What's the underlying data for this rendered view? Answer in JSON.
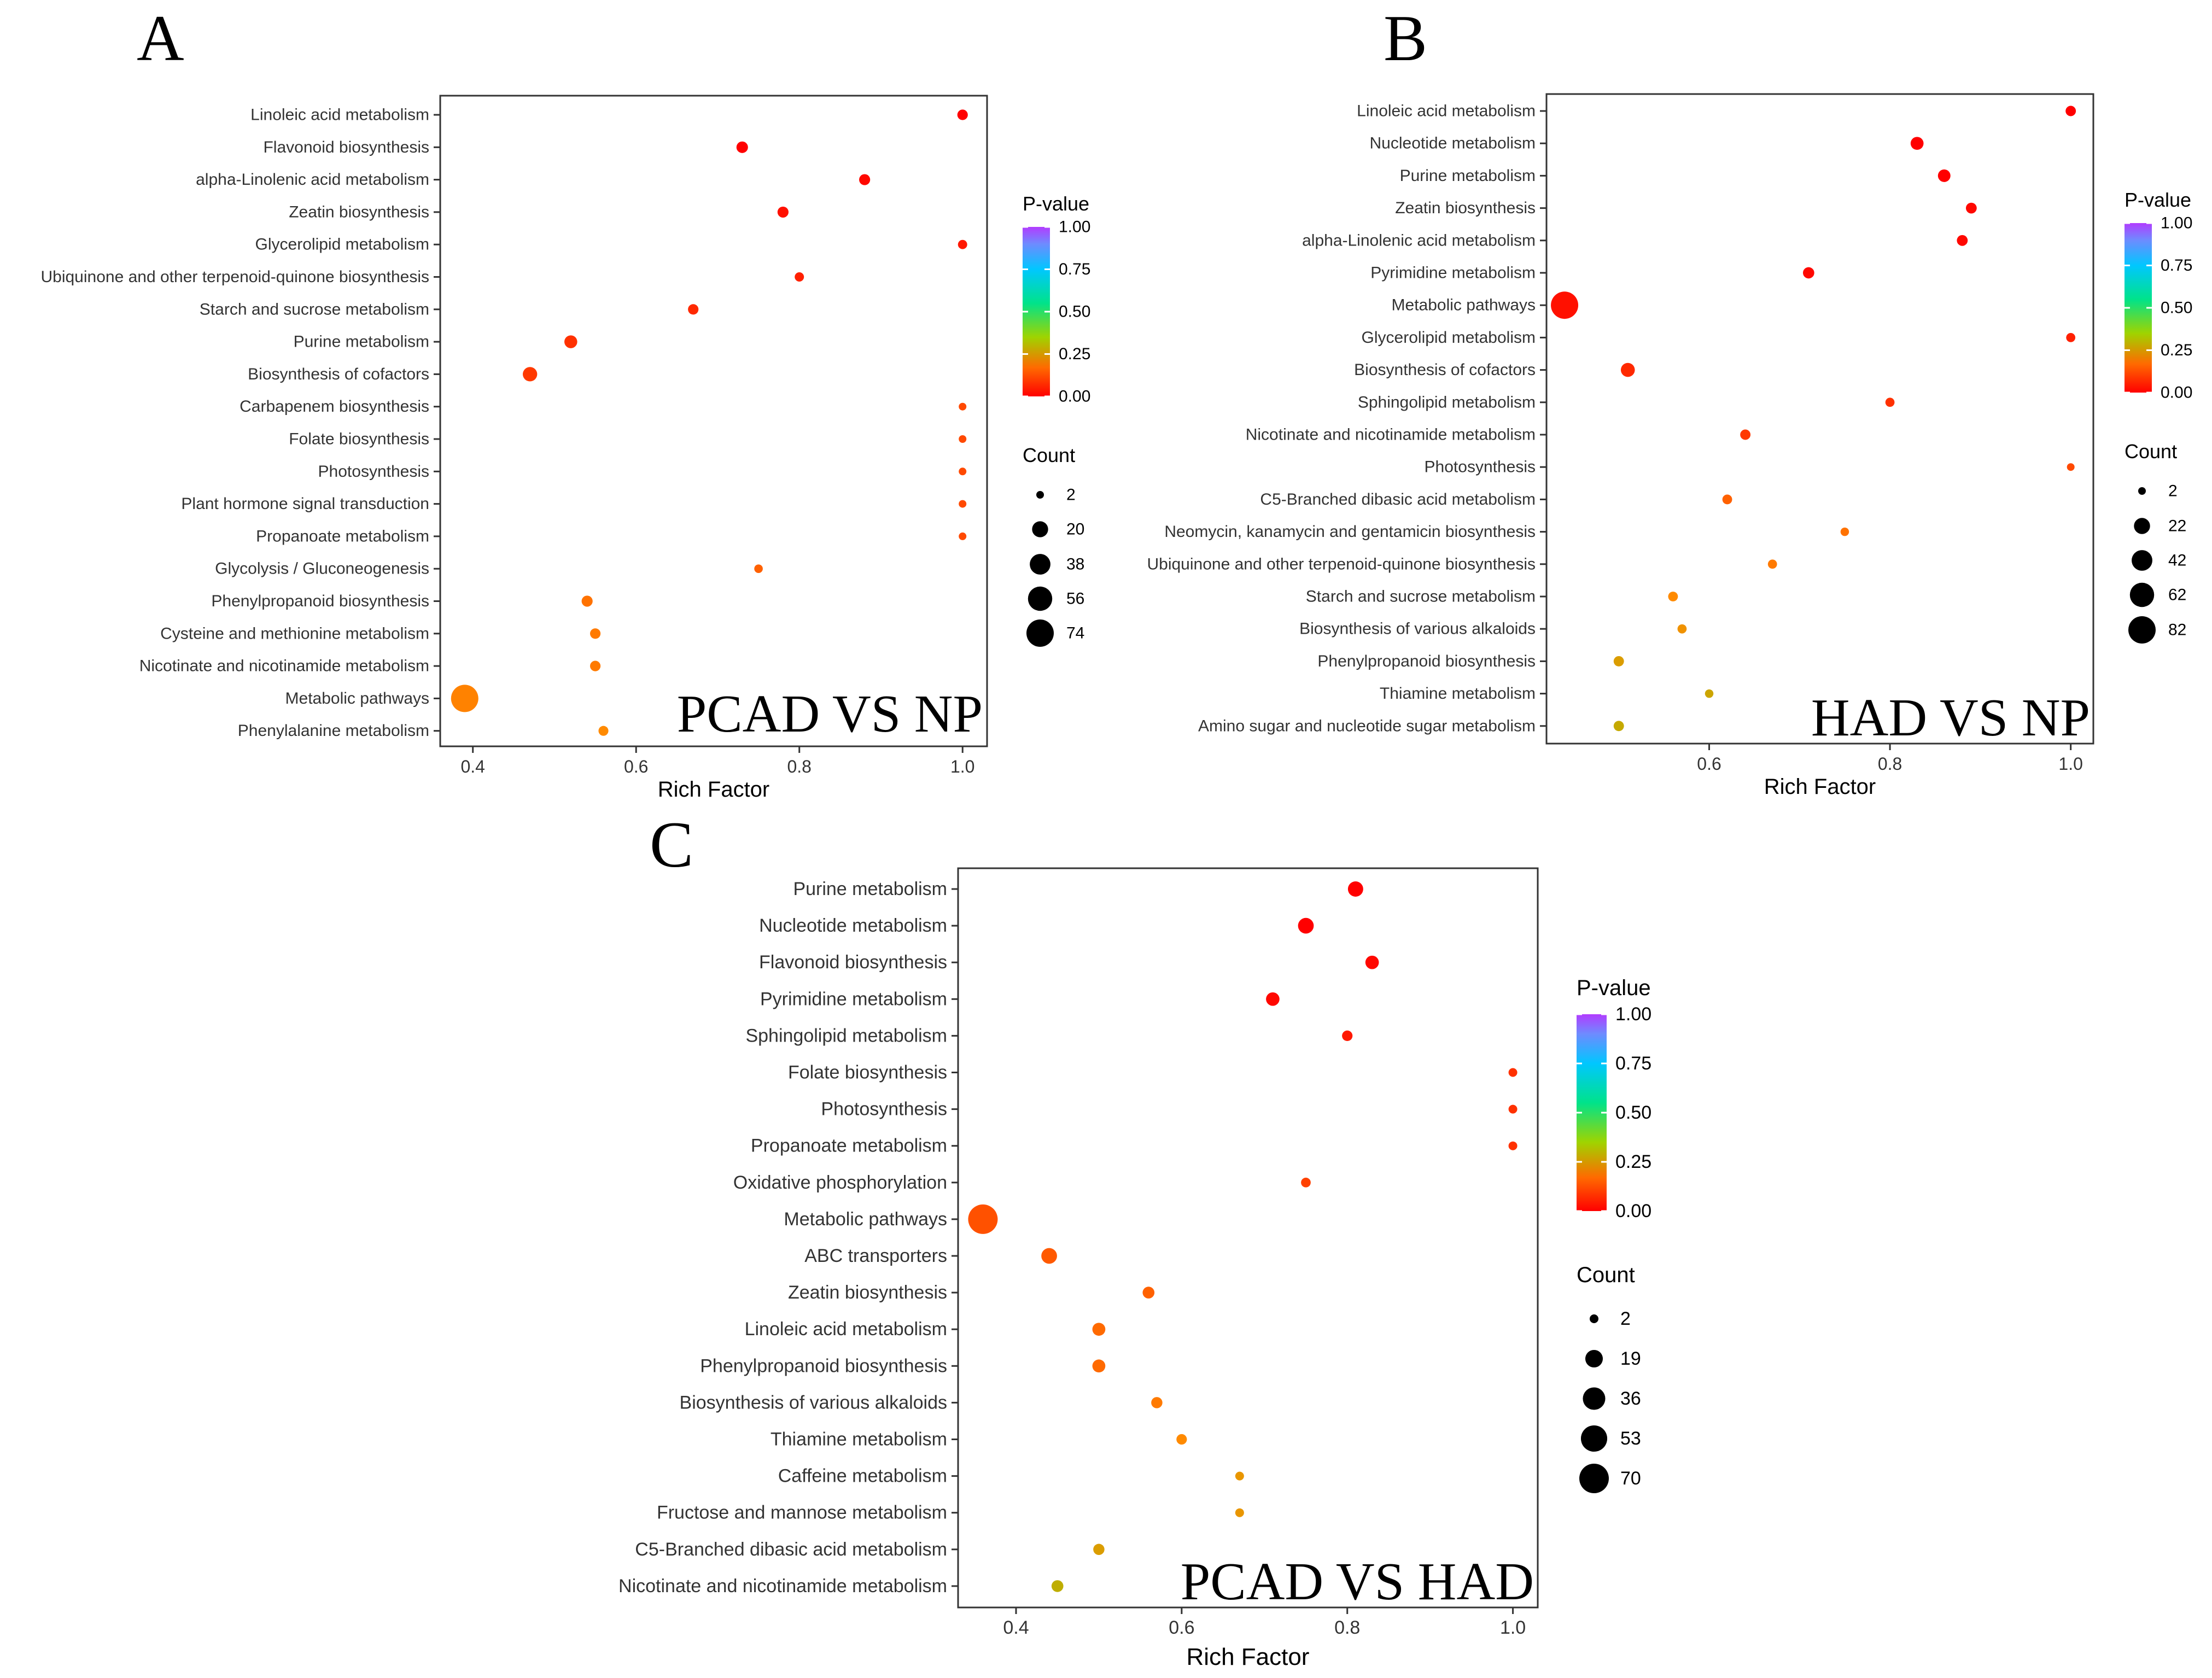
{
  "colorscale": [
    "#ff0000",
    "#ff8a00",
    "#7cd000",
    "#00e38a",
    "#00c7ff",
    "#6e8bff",
    "#b23cff"
  ],
  "chart_data": [
    {
      "type": "scatter",
      "panel_label": "A",
      "title": "PCAD VS NP",
      "xlabel": "Rich Factor",
      "xlim": [
        0.36,
        1.03
      ],
      "xticks": [
        0.4,
        0.6,
        0.8,
        1.0
      ],
      "xtick_labels": [
        "0.4",
        "0.6",
        "0.8",
        "1.0"
      ],
      "grid": false,
      "color_legend": {
        "title": "P-value",
        "ticks": [
          "1.00",
          "0.75",
          "0.50",
          "0.25",
          "0.00"
        ]
      },
      "size_legend": {
        "title": "Count",
        "values": [
          2,
          20,
          38,
          56,
          74
        ],
        "labels": [
          "2",
          "20",
          "38",
          "56",
          "74"
        ]
      },
      "points": [
        {
          "pathway": "Linoleic acid metabolism",
          "rich_factor": 1.0,
          "count": 6,
          "pvalue": 0.0
        },
        {
          "pathway": "Flavonoid biosynthesis",
          "rich_factor": 0.73,
          "count": 8,
          "pvalue": 0.0
        },
        {
          "pathway": "alpha-Linolenic acid metabolism",
          "rich_factor": 0.88,
          "count": 7,
          "pvalue": 0.01
        },
        {
          "pathway": "Zeatin biosynthesis",
          "rich_factor": 0.78,
          "count": 7,
          "pvalue": 0.02
        },
        {
          "pathway": "Glycerolipid metabolism",
          "rich_factor": 1.0,
          "count": 4,
          "pvalue": 0.03
        },
        {
          "pathway": "Ubiquinone and other terpenoid-quinone biosynthesis",
          "rich_factor": 0.8,
          "count": 4,
          "pvalue": 0.04
        },
        {
          "pathway": "Starch and sucrose metabolism",
          "rich_factor": 0.67,
          "count": 6,
          "pvalue": 0.05
        },
        {
          "pathway": "Purine metabolism",
          "rich_factor": 0.52,
          "count": 11,
          "pvalue": 0.06
        },
        {
          "pathway": "Biosynthesis of cofactors",
          "rich_factor": 0.47,
          "count": 15,
          "pvalue": 0.07
        },
        {
          "pathway": "Carbapenem biosynthesis",
          "rich_factor": 1.0,
          "count": 2,
          "pvalue": 0.09
        },
        {
          "pathway": "Folate biosynthesis",
          "rich_factor": 1.0,
          "count": 2,
          "pvalue": 0.09
        },
        {
          "pathway": "Photosynthesis",
          "rich_factor": 1.0,
          "count": 2,
          "pvalue": 0.09
        },
        {
          "pathway": "Plant hormone signal transduction",
          "rich_factor": 1.0,
          "count": 2,
          "pvalue": 0.09
        },
        {
          "pathway": "Propanoate metabolism",
          "rich_factor": 1.0,
          "count": 2,
          "pvalue": 0.09
        },
        {
          "pathway": "Glycolysis / Gluconeogenesis",
          "rich_factor": 0.75,
          "count": 3,
          "pvalue": 0.12
        },
        {
          "pathway": "Phenylpropanoid biosynthesis",
          "rich_factor": 0.54,
          "count": 7,
          "pvalue": 0.14
        },
        {
          "pathway": "Cysteine and methionine metabolism",
          "rich_factor": 0.55,
          "count": 6,
          "pvalue": 0.15
        },
        {
          "pathway": "Nicotinate and nicotinamide metabolism",
          "rich_factor": 0.55,
          "count": 6,
          "pvalue": 0.15
        },
        {
          "pathway": "Metabolic pathways",
          "rich_factor": 0.39,
          "count": 74,
          "pvalue": 0.16
        },
        {
          "pathway": "Phenylalanine metabolism",
          "rich_factor": 0.56,
          "count": 5,
          "pvalue": 0.17
        }
      ]
    },
    {
      "type": "scatter",
      "panel_label": "B",
      "title": "HAD VS NP",
      "xlabel": "Rich Factor",
      "xlim": [
        0.42,
        1.025
      ],
      "xticks": [
        0.6,
        0.8,
        1.0
      ],
      "xtick_labels": [
        "0.6",
        "0.8",
        "1.0"
      ],
      "grid": false,
      "color_legend": {
        "title": "P-value",
        "ticks": [
          "1.00",
          "0.75",
          "0.50",
          "0.25",
          "0.00"
        ]
      },
      "size_legend": {
        "title": "Count",
        "values": [
          2,
          22,
          42,
          62,
          82
        ],
        "labels": [
          "2",
          "22",
          "42",
          "62",
          "82"
        ]
      },
      "points": [
        {
          "pathway": "Linoleic acid metabolism",
          "rich_factor": 1.0,
          "count": 6,
          "pvalue": 0.0
        },
        {
          "pathway": "Nucleotide metabolism",
          "rich_factor": 0.83,
          "count": 12,
          "pvalue": 0.0
        },
        {
          "pathway": "Purine metabolism",
          "rich_factor": 0.86,
          "count": 11,
          "pvalue": 0.0
        },
        {
          "pathway": "Zeatin biosynthesis",
          "rich_factor": 0.89,
          "count": 7,
          "pvalue": 0.01
        },
        {
          "pathway": "alpha-Linolenic acid metabolism",
          "rich_factor": 0.88,
          "count": 7,
          "pvalue": 0.01
        },
        {
          "pathway": "Pyrimidine metabolism",
          "rich_factor": 0.71,
          "count": 8,
          "pvalue": 0.01
        },
        {
          "pathway": "Metabolic pathways",
          "rich_factor": 0.44,
          "count": 82,
          "pvalue": 0.02
        },
        {
          "pathway": "Glycerolipid metabolism",
          "rich_factor": 1.0,
          "count": 4,
          "pvalue": 0.04
        },
        {
          "pathway": "Biosynthesis of cofactors",
          "rich_factor": 0.51,
          "count": 15,
          "pvalue": 0.05
        },
        {
          "pathway": "Sphingolipid metabolism",
          "rich_factor": 0.8,
          "count": 4,
          "pvalue": 0.06
        },
        {
          "pathway": "Nicotinate and nicotinamide metabolism",
          "rich_factor": 0.64,
          "count": 6,
          "pvalue": 0.07
        },
        {
          "pathway": "Photosynthesis",
          "rich_factor": 1.0,
          "count": 2,
          "pvalue": 0.09
        },
        {
          "pathway": "C5-Branched dibasic acid metabolism",
          "rich_factor": 0.62,
          "count": 5,
          "pvalue": 0.12
        },
        {
          "pathway": "Neomycin, kanamycin and gentamicin biosynthesis",
          "rich_factor": 0.75,
          "count": 3,
          "pvalue": 0.14
        },
        {
          "pathway": "Ubiquinone and other terpenoid-quinone biosynthesis",
          "rich_factor": 0.67,
          "count": 4,
          "pvalue": 0.15
        },
        {
          "pathway": "Starch and sucrose metabolism",
          "rich_factor": 0.56,
          "count": 5,
          "pvalue": 0.17
        },
        {
          "pathway": "Biosynthesis of various alkaloids",
          "rich_factor": 0.57,
          "count": 4,
          "pvalue": 0.19
        },
        {
          "pathway": "Phenylpropanoid biosynthesis",
          "rich_factor": 0.5,
          "count": 6,
          "pvalue": 0.22
        },
        {
          "pathway": "Thiamine metabolism",
          "rich_factor": 0.6,
          "count": 3,
          "pvalue": 0.24
        },
        {
          "pathway": "Amino sugar and nucleotide sugar metabolism",
          "rich_factor": 0.5,
          "count": 6,
          "pvalue": 0.25
        }
      ]
    },
    {
      "type": "scatter",
      "panel_label": "C",
      "title": "PCAD VS HAD",
      "xlabel": "Rich Factor",
      "xlim": [
        0.33,
        1.03
      ],
      "xticks": [
        0.4,
        0.6,
        0.8,
        1.0
      ],
      "xtick_labels": [
        "0.4",
        "0.6",
        "0.8",
        "1.0"
      ],
      "grid": false,
      "color_legend": {
        "title": "P-value",
        "ticks": [
          "1.00",
          "0.75",
          "0.50",
          "0.25",
          "0.00"
        ]
      },
      "size_legend": {
        "title": "Count",
        "values": [
          2,
          19,
          36,
          53,
          70
        ],
        "labels": [
          "2",
          "19",
          "36",
          "53",
          "70"
        ]
      },
      "points": [
        {
          "pathway": "Purine metabolism",
          "rich_factor": 0.81,
          "count": 13,
          "pvalue": 0.0
        },
        {
          "pathway": "Nucleotide metabolism",
          "rich_factor": 0.75,
          "count": 14,
          "pvalue": 0.0
        },
        {
          "pathway": "Flavonoid biosynthesis",
          "rich_factor": 0.83,
          "count": 9,
          "pvalue": 0.01
        },
        {
          "pathway": "Pyrimidine metabolism",
          "rich_factor": 0.71,
          "count": 9,
          "pvalue": 0.01
        },
        {
          "pathway": "Sphingolipid metabolism",
          "rich_factor": 0.8,
          "count": 4,
          "pvalue": 0.03
        },
        {
          "pathway": "Folate biosynthesis",
          "rich_factor": 1.0,
          "count": 2,
          "pvalue": 0.06
        },
        {
          "pathway": "Photosynthesis",
          "rich_factor": 1.0,
          "count": 2,
          "pvalue": 0.06
        },
        {
          "pathway": "Propanoate metabolism",
          "rich_factor": 1.0,
          "count": 2,
          "pvalue": 0.06
        },
        {
          "pathway": "Oxidative phosphorylation",
          "rich_factor": 0.75,
          "count": 3,
          "pvalue": 0.08
        },
        {
          "pathway": "Metabolic pathways",
          "rich_factor": 0.36,
          "count": 70,
          "pvalue": 0.1
        },
        {
          "pathway": "ABC transporters",
          "rich_factor": 0.44,
          "count": 14,
          "pvalue": 0.11
        },
        {
          "pathway": "Zeatin biosynthesis",
          "rich_factor": 0.56,
          "count": 6,
          "pvalue": 0.12
        },
        {
          "pathway": "Linoleic acid metabolism",
          "rich_factor": 0.5,
          "count": 8,
          "pvalue": 0.13
        },
        {
          "pathway": "Phenylpropanoid biosynthesis",
          "rich_factor": 0.5,
          "count": 8,
          "pvalue": 0.13
        },
        {
          "pathway": "Biosynthesis of various alkaloids",
          "rich_factor": 0.57,
          "count": 5,
          "pvalue": 0.15
        },
        {
          "pathway": "Thiamine metabolism",
          "rich_factor": 0.6,
          "count": 4,
          "pvalue": 0.17
        },
        {
          "pathway": "Caffeine metabolism",
          "rich_factor": 0.67,
          "count": 2,
          "pvalue": 0.2
        },
        {
          "pathway": "Fructose and mannose metabolism",
          "rich_factor": 0.67,
          "count": 2,
          "pvalue": 0.2
        },
        {
          "pathway": "C5-Branched dibasic acid metabolism",
          "rich_factor": 0.5,
          "count": 5,
          "pvalue": 0.22
        },
        {
          "pathway": "Nicotinate and nicotinamide metabolism",
          "rich_factor": 0.45,
          "count": 6,
          "pvalue": 0.26
        }
      ]
    }
  ]
}
